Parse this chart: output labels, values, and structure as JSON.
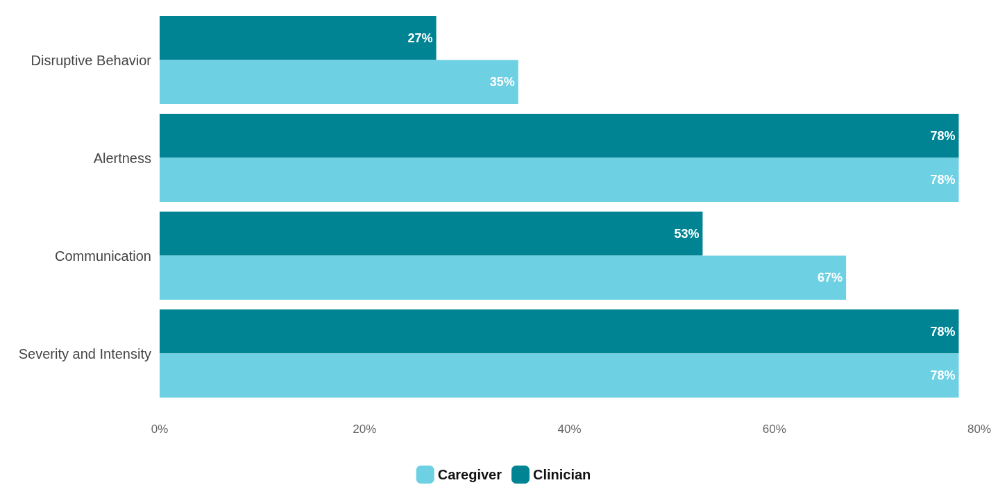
{
  "chart_data": {
    "type": "bar",
    "orientation": "horizontal",
    "categories": [
      "Disruptive Behavior",
      "Alertness",
      "Communication",
      "Severity and Intensity"
    ],
    "series": [
      {
        "name": "Caregiver",
        "color": "#6dd0e3",
        "values": [
          35,
          78,
          67,
          78
        ],
        "value_labels": [
          "35%",
          "78%",
          "67%",
          "78%"
        ]
      },
      {
        "name": "Clinician",
        "color": "#008494",
        "values": [
          27,
          78,
          53,
          78
        ],
        "value_labels": [
          "27%",
          "78%",
          "53%",
          "78%"
        ]
      }
    ],
    "xlim": [
      0,
      80
    ],
    "xticks": [
      {
        "value": 0,
        "label": "0%"
      },
      {
        "value": 20,
        "label": "20%"
      },
      {
        "value": 40,
        "label": "40%"
      },
      {
        "value": 60,
        "label": "60%"
      },
      {
        "value": 80,
        "label": "80%"
      }
    ],
    "grid": false,
    "legend": "bottom"
  }
}
